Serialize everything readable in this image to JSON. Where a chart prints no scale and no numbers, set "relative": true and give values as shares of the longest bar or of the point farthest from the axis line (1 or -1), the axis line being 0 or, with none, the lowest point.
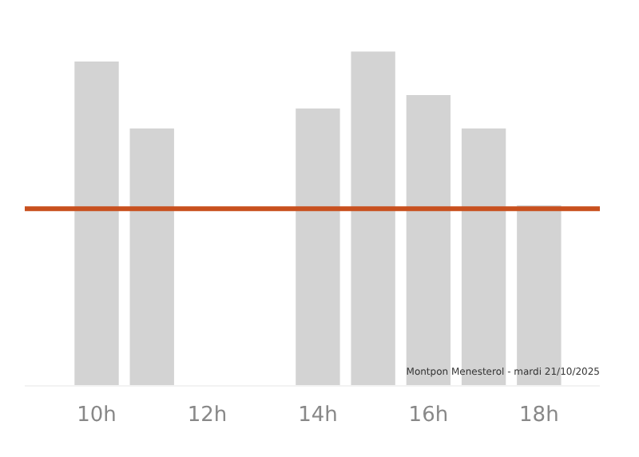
{
  "chart_data": {
    "type": "bar",
    "relative": true,
    "categories": [
      "10h",
      null,
      "12h",
      null,
      "14h",
      null,
      "16h",
      null,
      "18h"
    ],
    "values": [
      0.97,
      0.77,
      null,
      null,
      0.83,
      1,
      0.87,
      0.77,
      0.54
    ],
    "color": "#d3d3d3",
    "ref_lines": [
      {
        "axis": "y",
        "value": 0.53,
        "label": null,
        "color": "#c8501e"
      }
    ],
    "annotations": [
      "Montpon Menesterol - mardi 21/10/2025"
    ],
    "grid": false
  }
}
